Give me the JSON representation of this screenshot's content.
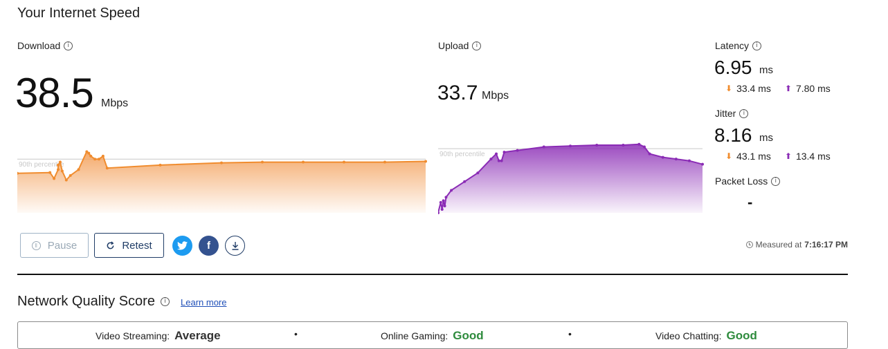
{
  "header": {
    "title": "Your Internet Speed"
  },
  "download": {
    "label": "Download",
    "value": "38.5",
    "unit": "Mbps",
    "percentile_label": "90th percentile"
  },
  "upload": {
    "label": "Upload",
    "value": "33.7",
    "unit": "Mbps",
    "percentile_label": "90th percentile"
  },
  "latency": {
    "label": "Latency",
    "value": "6.95",
    "unit": "ms",
    "down": "33.4 ms",
    "up": "7.80 ms"
  },
  "jitter": {
    "label": "Jitter",
    "value": "8.16",
    "unit": "ms",
    "down": "43.1 ms",
    "up": "13.4 ms"
  },
  "packet_loss": {
    "label": "Packet Loss",
    "value": "-"
  },
  "actions": {
    "pause_label": "Pause",
    "retest_label": "Retest"
  },
  "measured": {
    "prefix": "Measured at",
    "time": "7:16:17 PM"
  },
  "network_quality": {
    "title": "Network Quality Score",
    "learn_more": "Learn more",
    "items": [
      {
        "label": "Video Streaming:",
        "value": "Average",
        "color": "#333333"
      },
      {
        "label": "Online Gaming:",
        "value": "Good",
        "color": "#2e8b3d"
      },
      {
        "label": "Video Chatting:",
        "value": "Good",
        "color": "#2e8b3d"
      }
    ],
    "separator": "•"
  },
  "colors": {
    "download": "#f08c2e",
    "upload": "#8a2bb5"
  },
  "chart_data": [
    {
      "type": "area",
      "name": "download-speed-over-time",
      "color": "#f08c2e",
      "x": [
        0,
        0.08,
        0.09,
        0.1,
        0.1,
        0.105,
        0.11,
        0.12,
        0.13,
        0.15,
        0.17,
        0.175,
        0.18,
        0.19,
        0.2,
        0.21,
        0.22,
        0.35,
        0.5,
        0.6,
        0.7,
        0.8,
        0.9,
        1.0
      ],
      "values": [
        26.5,
        27,
        23,
        29,
        32,
        34,
        28,
        22,
        25,
        29,
        41,
        40,
        38,
        36,
        36,
        38,
        30,
        32,
        33.5,
        34,
        34,
        34,
        34,
        34.5
      ],
      "ylim": [
        0,
        50
      ],
      "reference_line": 36,
      "reference_label": "90th percentile"
    },
    {
      "type": "area",
      "name": "upload-speed-over-time",
      "color": "#8a2bb5",
      "x": [
        0,
        0.01,
        0.015,
        0.02,
        0.025,
        0.03,
        0.05,
        0.1,
        0.15,
        0.2,
        0.22,
        0.23,
        0.24,
        0.25,
        0.3,
        0.4,
        0.5,
        0.6,
        0.7,
        0.76,
        0.78,
        0.8,
        0.85,
        0.9,
        0.95,
        1.0
      ],
      "values": [
        0,
        6,
        2,
        7,
        4,
        9,
        13,
        18,
        23,
        31,
        34,
        30,
        30,
        35,
        36,
        38,
        38.5,
        39,
        39,
        39.5,
        38,
        34,
        32,
        31,
        30,
        28
      ],
      "ylim": [
        0,
        43
      ],
      "reference_line": 37,
      "reference_label": "90th percentile"
    }
  ]
}
